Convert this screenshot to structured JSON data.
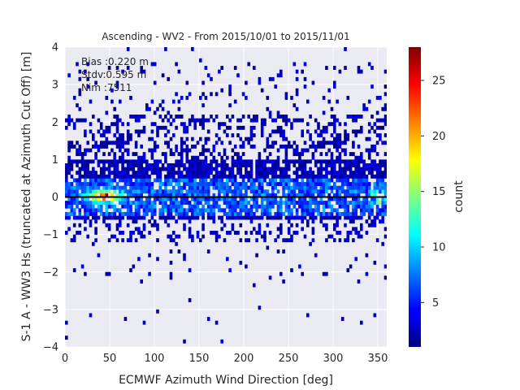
{
  "chart_data": {
    "type": "heatmap",
    "title": "Ascending - WV2 - From 2015/10/01 to 2015/11/01",
    "xlabel": "ECMWF Azimuth Wind Direction [deg]",
    "ylabel": "S-1 A - WW3 Hs (truncated at Azimuth Cut Off) [m]",
    "xlim": [
      0,
      360
    ],
    "ylim": [
      -4,
      4
    ],
    "xticks": [
      "0",
      "50",
      "100",
      "150",
      "200",
      "250",
      "300",
      "350"
    ],
    "yticks": [
      "−4",
      "−3",
      "−2",
      "−1",
      "0",
      "1",
      "2",
      "3",
      "4"
    ],
    "grid": true,
    "colorbar": {
      "label": "count",
      "range": [
        1,
        28
      ],
      "colormap": "jet",
      "ticks": [
        "5",
        "10",
        "15",
        "20",
        "25"
      ]
    },
    "annotations": {
      "bias": "Bias :0.220 m",
      "stdv": "Stdv:0.595 m",
      "nim": "Nim :7511"
    },
    "reference_line_y": 0
  },
  "colors": {
    "plot_background": "#eaeaf2",
    "grid": "#ffffff",
    "zero_line": "#000000"
  }
}
